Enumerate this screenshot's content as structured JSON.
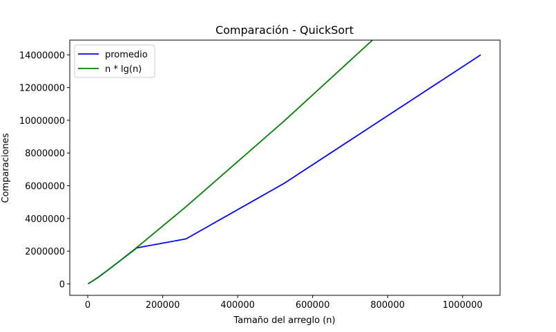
{
  "chart_data": {
    "type": "line",
    "title": "Comparación - QuickSort",
    "xlabel": "Tamaño del arreglo (n)",
    "ylabel": "Comparaciones",
    "xlim": [
      -48000,
      1100000
    ],
    "ylim": [
      -700000,
      14900000
    ],
    "xticks": [
      0,
      200000,
      400000,
      600000,
      800000,
      1000000
    ],
    "xtick_labels": [
      "0",
      "200000",
      "400000",
      "600000",
      "800000",
      "1000000"
    ],
    "yticks": [
      0,
      2000000,
      4000000,
      6000000,
      8000000,
      10000000,
      12000000,
      14000000
    ],
    "ytick_labels": [
      "0",
      "2000000",
      "4000000",
      "6000000",
      "8000000",
      "10000000",
      "12000000",
      "14000000"
    ],
    "grid": false,
    "legend_position": "top-left",
    "series": [
      {
        "name": "promedio",
        "color": "#0000ff",
        "x": [
          1024,
          2048,
          4096,
          8192,
          16384,
          32768,
          65536,
          131072,
          262144,
          524288,
          1048576
        ],
        "y": [
          10000,
          22000,
          50000,
          110000,
          230000,
          480000,
          1050000,
          2200000,
          2750000,
          6150000,
          14000000
        ]
      },
      {
        "name": "n * lg(n)",
        "color": "#008000",
        "x": [
          1024,
          2048,
          4096,
          8192,
          16384,
          32768,
          65536,
          131072,
          262144,
          524288,
          1048576
        ],
        "y": [
          10240,
          22528,
          49152,
          106496,
          229376,
          491520,
          1048576,
          2228224,
          4718592,
          9961472,
          20971520
        ]
      }
    ]
  }
}
